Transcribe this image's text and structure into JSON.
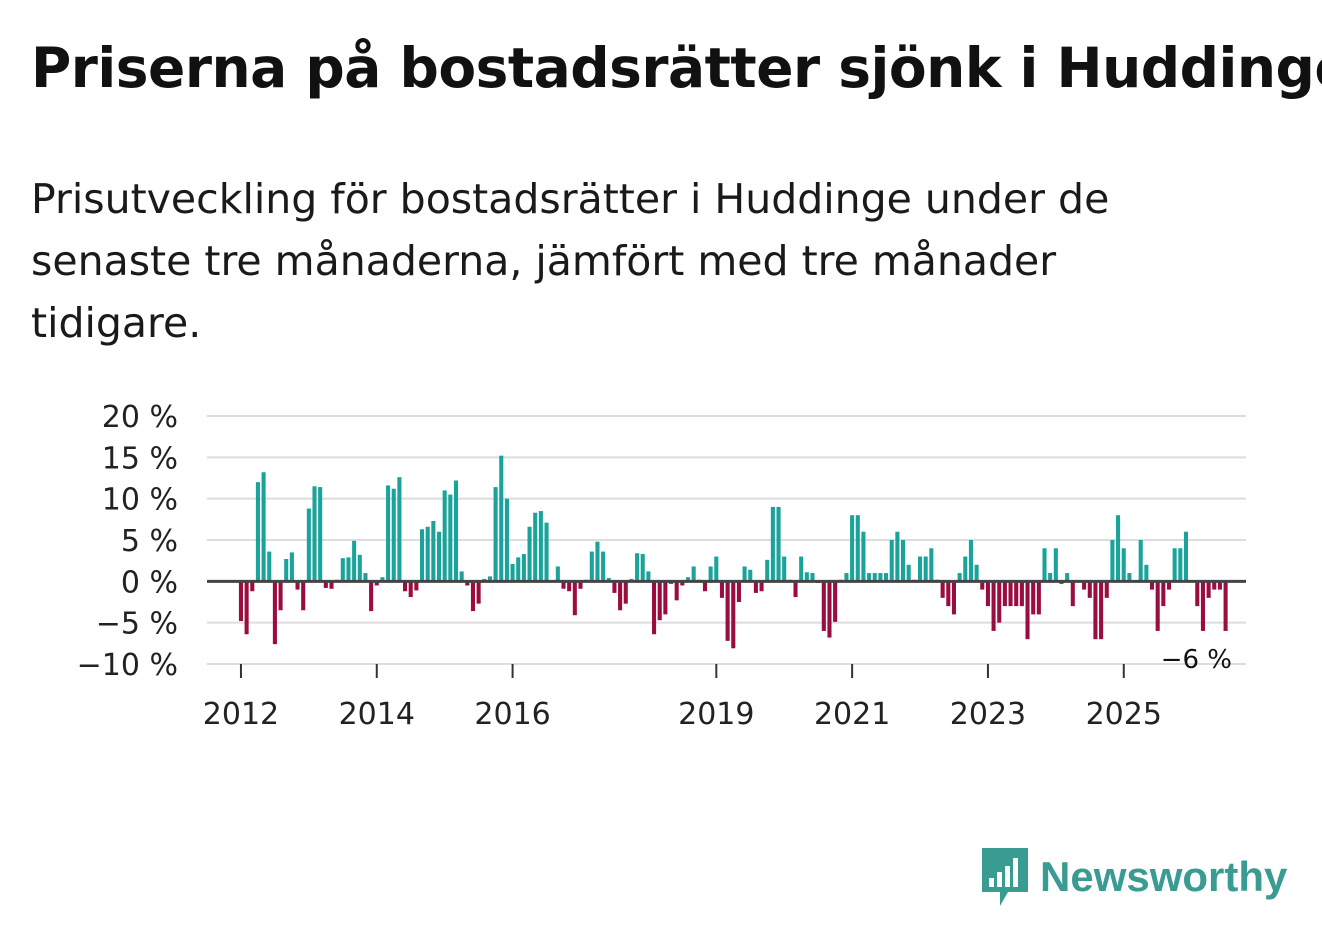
{
  "title": "Priserna på bostadsrätter sjönk i Huddinge",
  "subtitle": "Prisutveckling för bostadsrätter i Huddinge under de senaste tre månaderna, jämfört med tre månader tidigare.",
  "brand": "Newsworthy",
  "colors": {
    "positive": "#1aa39a",
    "negative": "#9c0d3f",
    "grid": "#dddddd",
    "zero_line": "#444444",
    "text": "#222222"
  },
  "chart_data": {
    "type": "bar",
    "title": "Priserna på bostadsrätter sjönk i Huddinge",
    "xlabel": "",
    "ylabel": "",
    "ylim": [
      -10,
      20
    ],
    "y_ticks": [
      20,
      15,
      10,
      5,
      0,
      -5,
      -10
    ],
    "y_tick_labels": [
      "20 %",
      "15 %",
      "10 %",
      "5 %",
      "0 %",
      "−5 %",
      "−10 %"
    ],
    "x_range": [
      2011.5,
      2026.8
    ],
    "x_ticks": [
      2012,
      2014,
      2016,
      2019,
      2021,
      2023,
      2025
    ],
    "x_tick_labels": [
      "2012",
      "2014",
      "2016",
      "2019",
      "2021",
      "2023",
      "2025"
    ],
    "start": 2012.0,
    "step": 0.08333,
    "values": [
      -4.8,
      -6.4,
      -1.2,
      12.0,
      13.2,
      3.6,
      -7.6,
      -3.5,
      2.7,
      3.5,
      -1.0,
      -3.5,
      8.8,
      11.5,
      11.4,
      -0.8,
      -0.9,
      0.2,
      2.8,
      2.9,
      4.9,
      3.2,
      1.0,
      -3.6,
      -0.5,
      0.5,
      11.6,
      11.2,
      12.6,
      -1.2,
      -1.9,
      -1.1,
      6.3,
      6.6,
      7.3,
      6.0,
      11.0,
      10.5,
      12.2,
      1.2,
      -0.5,
      -3.6,
      -2.7,
      0.3,
      0.6,
      11.4,
      15.2,
      10.0,
      2.1,
      2.9,
      3.3,
      6.6,
      8.3,
      8.5,
      7.1,
      0.1,
      1.8,
      -0.9,
      -1.2,
      -4.1,
      -0.9,
      0.2,
      3.6,
      4.8,
      3.6,
      0.4,
      -1.4,
      -3.5,
      -2.7,
      0.3,
      3.4,
      3.3,
      1.2,
      -6.4,
      -4.7,
      -4.0,
      -0.3,
      -2.3,
      -0.5,
      0.5,
      1.8,
      0.2,
      -1.2,
      1.8,
      3.0,
      -2.0,
      -7.2,
      -8.1,
      -2.5,
      1.8,
      1.4,
      -1.4,
      -1.2,
      2.6,
      9.0,
      9.0,
      3.0,
      0.2,
      -1.9,
      3.0,
      1.1,
      1.0,
      -0.2,
      -6.0,
      -6.8,
      -4.9,
      0.2,
      1.0,
      8.0,
      8.0,
      6.0,
      1.0,
      1.0,
      1.0,
      1.0,
      5.0,
      6.0,
      5.0,
      2.0,
      0.2,
      3.0,
      3.0,
      4.0,
      0.2,
      -2.0,
      -3.0,
      -4.0,
      1.0,
      3.0,
      5.0,
      2.0,
      -1.0,
      -3.0,
      -6.0,
      -5.0,
      -3.0,
      -3.0,
      -3.0,
      -3.0,
      -7.0,
      -4.0,
      -4.0,
      4.0,
      1.0,
      4.0,
      -0.3,
      1.0,
      -3.0,
      0.1,
      -1.0,
      -2.0,
      -7.0,
      -7.0,
      -2.0,
      5.0,
      8.0,
      4.0,
      1.0,
      0.1,
      5.0,
      2.0,
      -1.0,
      -6.0,
      -3.0,
      -1.0,
      4.0,
      4.0,
      6.0,
      0.1,
      -3.0,
      -6.0,
      -2.0,
      -1.0,
      -1.0,
      -6.0
    ],
    "annotation": "−6 %"
  }
}
